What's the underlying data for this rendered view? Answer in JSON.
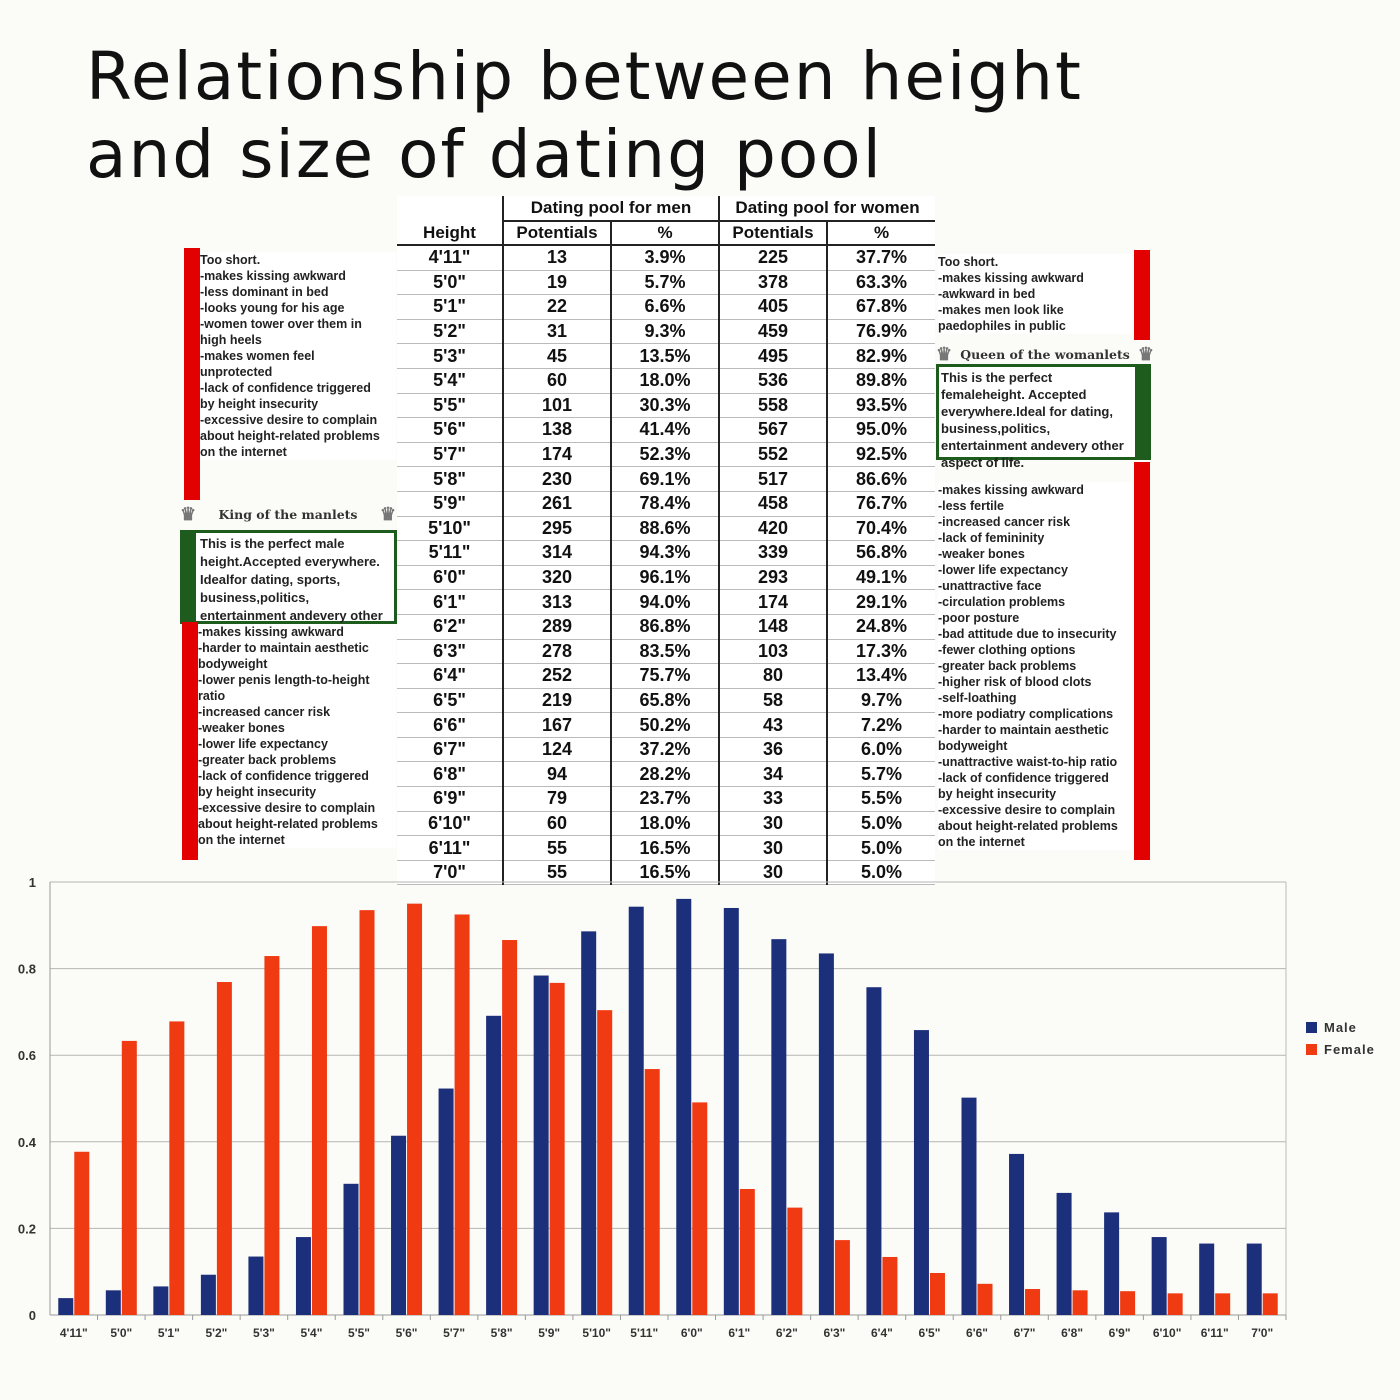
{
  "title_line1": "Relationship between height",
  "title_line2": "and size of dating pool",
  "table": {
    "height_header": "Height",
    "men_group": "Dating pool for men",
    "women_group": "Dating pool for women",
    "potentials_header": "Potentials",
    "pct_header": "%",
    "rows": [
      {
        "h": "4'11\"",
        "mp": "13",
        "mpct": "3.9%",
        "wp": "225",
        "wpct": "37.7%"
      },
      {
        "h": "5'0\"",
        "mp": "19",
        "mpct": "5.7%",
        "wp": "378",
        "wpct": "63.3%"
      },
      {
        "h": "5'1\"",
        "mp": "22",
        "mpct": "6.6%",
        "wp": "405",
        "wpct": "67.8%"
      },
      {
        "h": "5'2\"",
        "mp": "31",
        "mpct": "9.3%",
        "wp": "459",
        "wpct": "76.9%"
      },
      {
        "h": "5'3\"",
        "mp": "45",
        "mpct": "13.5%",
        "wp": "495",
        "wpct": "82.9%"
      },
      {
        "h": "5'4\"",
        "mp": "60",
        "mpct": "18.0%",
        "wp": "536",
        "wpct": "89.8%"
      },
      {
        "h": "5'5\"",
        "mp": "101",
        "mpct": "30.3%",
        "wp": "558",
        "wpct": "93.5%"
      },
      {
        "h": "5'6\"",
        "mp": "138",
        "mpct": "41.4%",
        "wp": "567",
        "wpct": "95.0%"
      },
      {
        "h": "5'7\"",
        "mp": "174",
        "mpct": "52.3%",
        "wp": "552",
        "wpct": "92.5%"
      },
      {
        "h": "5'8\"",
        "mp": "230",
        "mpct": "69.1%",
        "wp": "517",
        "wpct": "86.6%"
      },
      {
        "h": "5'9\"",
        "mp": "261",
        "mpct": "78.4%",
        "wp": "458",
        "wpct": "76.7%"
      },
      {
        "h": "5'10\"",
        "mp": "295",
        "mpct": "88.6%",
        "wp": "420",
        "wpct": "70.4%"
      },
      {
        "h": "5'11\"",
        "mp": "314",
        "mpct": "94.3%",
        "wp": "339",
        "wpct": "56.8%"
      },
      {
        "h": "6'0\"",
        "mp": "320",
        "mpct": "96.1%",
        "wp": "293",
        "wpct": "49.1%"
      },
      {
        "h": "6'1\"",
        "mp": "313",
        "mpct": "94.0%",
        "wp": "174",
        "wpct": "29.1%"
      },
      {
        "h": "6'2\"",
        "mp": "289",
        "mpct": "86.8%",
        "wp": "148",
        "wpct": "24.8%"
      },
      {
        "h": "6'3\"",
        "mp": "278",
        "mpct": "83.5%",
        "wp": "103",
        "wpct": "17.3%"
      },
      {
        "h": "6'4\"",
        "mp": "252",
        "mpct": "75.7%",
        "wp": "80",
        "wpct": "13.4%"
      },
      {
        "h": "6'5\"",
        "mp": "219",
        "mpct": "65.8%",
        "wp": "58",
        "wpct": "9.7%"
      },
      {
        "h": "6'6\"",
        "mp": "167",
        "mpct": "50.2%",
        "wp": "43",
        "wpct": "7.2%"
      },
      {
        "h": "6'7\"",
        "mp": "124",
        "mpct": "37.2%",
        "wp": "36",
        "wpct": "6.0%"
      },
      {
        "h": "6'8\"",
        "mp": "94",
        "mpct": "28.2%",
        "wp": "34",
        "wpct": "5.7%"
      },
      {
        "h": "6'9\"",
        "mp": "79",
        "mpct": "23.7%",
        "wp": "33",
        "wpct": "5.5%"
      },
      {
        "h": "6'10\"",
        "mp": "60",
        "mpct": "18.0%",
        "wp": "30",
        "wpct": "5.0%"
      },
      {
        "h": "6'11\"",
        "mp": "55",
        "mpct": "16.5%",
        "wp": "30",
        "wpct": "5.0%"
      },
      {
        "h": "7'0\"",
        "mp": "55",
        "mpct": "16.5%",
        "wp": "30",
        "wpct": "5.0%"
      }
    ]
  },
  "left_notes": {
    "short": [
      "Too short.",
      " -makes kissing awkward",
      " -less dominant in bed",
      " -looks young for his age",
      " -women tower over them in",
      "high heels",
      " -makes women feel",
      "unprotected",
      " -lack of confidence triggered",
      "by height insecurity",
      "-excessive desire to complain",
      "about height-related problems",
      "on the internet"
    ],
    "king_label": "King of the manlets",
    "perfect": [
      "This is the perfect male height.",
      "Accepted everywhere. Ideal",
      "for dating, sports, business,",
      "politics, entertainment and",
      "every other aspect of life."
    ],
    "tall": [
      " -makes kissing awkward",
      " -harder to maintain aesthetic",
      "bodyweight",
      " -lower penis length-to-height",
      "ratio",
      " -increased cancer risk",
      " -weaker bones",
      " -lower life expectancy",
      " -greater back problems",
      " -lack of confidence triggered",
      "by height insecurity",
      " -excessive desire to complain",
      "about height-related problems",
      "on the internet"
    ]
  },
  "right_notes": {
    "short": [
      "Too short.",
      " -makes kissing awkward",
      " -awkward in bed",
      " -makes men look like",
      "paedophiles in public"
    ],
    "queen_label": "Queen of the womanlets",
    "perfect": [
      "This is the perfect female",
      "height. Accepted everywhere.",
      "Ideal for dating, business,",
      "politics, entertainment and",
      "every other aspect of life."
    ],
    "tall": [
      " -makes kissing awkward",
      " -less fertile",
      " -increased cancer risk",
      " -lack of femininity",
      " -weaker bones",
      " -lower life expectancy",
      " -unattractive face",
      " -circulation problems",
      " -poor posture",
      " -bad attitude due to insecurity",
      " -fewer clothing options",
      " -greater back problems",
      " -higher risk of blood clots",
      " -self-loathing",
      " -more podiatry complications",
      " -harder to maintain aesthetic",
      "bodyweight",
      " -unattractive waist-to-hip ratio",
      " -lack of confidence triggered",
      "by height insecurity",
      " -excessive desire to complain",
      "about height-related problems",
      "on the internet"
    ]
  },
  "colors": {
    "male": "#1c2f7a",
    "female": "#f03a12",
    "red_bar": "#e30000",
    "green": "#1e5c1e"
  },
  "chart_data": {
    "type": "bar",
    "categories": [
      "4'11\"",
      "5'0\"",
      "5'1\"",
      "5'2\"",
      "5'3\"",
      "5'4\"",
      "5'5\"",
      "5'6\"",
      "5'7\"",
      "5'8\"",
      "5'9\"",
      "5'10\"",
      "5'11\"",
      "6'0\"",
      "6'1\"",
      "6'2\"",
      "6'3\"",
      "6'4\"",
      "6'5\"",
      "6'6\"",
      "6'7\"",
      "6'8\"",
      "6'9\"",
      "6'10\"",
      "6'11\"",
      "7'0\""
    ],
    "series": [
      {
        "name": "Male",
        "values": [
          0.039,
          0.057,
          0.066,
          0.093,
          0.135,
          0.18,
          0.303,
          0.414,
          0.523,
          0.691,
          0.784,
          0.886,
          0.943,
          0.961,
          0.94,
          0.868,
          0.835,
          0.757,
          0.658,
          0.502,
          0.372,
          0.282,
          0.237,
          0.18,
          0.165,
          0.165
        ]
      },
      {
        "name": "Female",
        "values": [
          0.377,
          0.633,
          0.678,
          0.769,
          0.829,
          0.898,
          0.935,
          0.95,
          0.925,
          0.866,
          0.767,
          0.704,
          0.568,
          0.491,
          0.291,
          0.248,
          0.173,
          0.134,
          0.097,
          0.072,
          0.06,
          0.057,
          0.055,
          0.05,
          0.05,
          0.05
        ]
      }
    ],
    "yticks": [
      "0",
      "0.2",
      "0.4",
      "0.6",
      "0.8",
      "1"
    ],
    "ylim": [
      0,
      1
    ],
    "grid": true,
    "legend_position": "right"
  }
}
